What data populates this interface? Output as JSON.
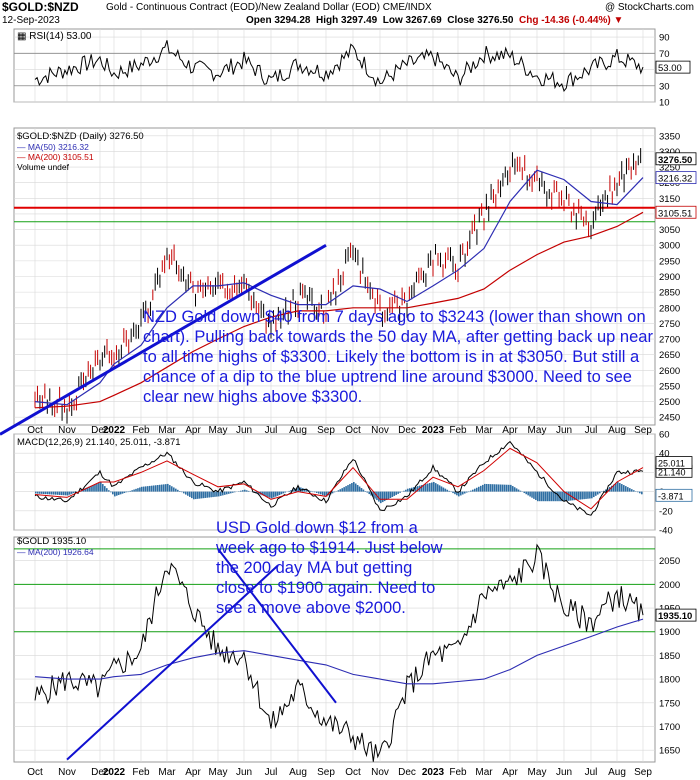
{
  "header": {
    "symbol": "$GOLD:$NZD",
    "description": "Gold - Continuous Contract (EOD)/New Zealand Dollar (EOD)",
    "exchange": "CME/INDX",
    "date": "12-Sep-2023",
    "open": "Open 3294.28",
    "high": "High 3297.49",
    "low": "Low 3267.69",
    "close": "Close 3276.50",
    "chg": "Chg -14.36 (-0.44%)",
    "source": "@ StockCharts.com"
  },
  "annotations": {
    "nzd_note": "NZD Gold down $40 from 7 days ago to $3243 (lower than shown on chart). Pulling back towards the 50 day MA, after getting back up near to all time highs of $3300. Likely the bottom is in at $3050. But still a chance of a dip to the blue uptrend line around $3000. Need to see clear new highs above $3300.",
    "usd_note": "USD Gold down $12 from a week ago to $1914. Just below the 200 day MA but getting close to $1900 again. Need to see a move above $2000."
  },
  "chart_data": [
    {
      "type": "line",
      "title": "RSI(14) 53.00",
      "ylim": [
        10,
        100
      ],
      "ticks": [
        "90",
        "70",
        "50",
        "30",
        "10"
      ],
      "levels": [
        70,
        30
      ],
      "last_value": "53.00",
      "x": [
        "Oct",
        "Nov",
        "Dec",
        "2022",
        "Feb",
        "Mar",
        "Apr",
        "May",
        "Jun",
        "Jul",
        "Aug",
        "Sep",
        "Oct",
        "Nov",
        "Dec",
        "2023",
        "Feb",
        "Mar",
        "Apr",
        "May",
        "Jun",
        "Jul",
        "Aug",
        "Sep"
      ],
      "values": [
        38,
        50,
        62,
        45,
        56,
        76,
        52,
        46,
        61,
        36,
        57,
        46,
        74,
        34,
        56,
        66,
        38,
        69,
        67,
        42,
        34,
        51,
        65,
        53
      ]
    },
    {
      "type": "line",
      "title": "$GOLD:$NZD (Daily) 3276.50",
      "legend": [
        "$GOLD:$NZD (Daily) 3276.50",
        "MA(50) 3216.32",
        "MA(200) 3105.51",
        "Volume undef"
      ],
      "ylim": [
        2425,
        3375
      ],
      "ticks": [
        3350,
        3300,
        3250,
        3200,
        3150,
        3100,
        3050,
        3000,
        2950,
        2900,
        2850,
        2800,
        2750,
        2700,
        2650,
        2600,
        2550,
        2500,
        2450
      ],
      "x": [
        "Oct",
        "Nov",
        "Dec",
        "2022",
        "Feb",
        "Mar",
        "Apr",
        "May",
        "Jun",
        "Jul",
        "Aug",
        "Sep",
        "Oct",
        "Nov",
        "Dec",
        "2023",
        "Feb",
        "Mar",
        "Apr",
        "May",
        "Jun",
        "Jul",
        "Aug",
        "Sep"
      ],
      "series": [
        {
          "name": "$GOLD:$NZD",
          "values": [
            2520,
            2480,
            2630,
            2660,
            2740,
            2980,
            2850,
            2860,
            2880,
            2740,
            2830,
            2800,
            2980,
            2790,
            2820,
            2960,
            2930,
            3100,
            3240,
            3210,
            3140,
            3070,
            3200,
            3276.5
          ]
        },
        {
          "name": "MA(50)",
          "values": [
            2500,
            2490,
            2560,
            2620,
            2680,
            2800,
            2870,
            2870,
            2880,
            2840,
            2810,
            2810,
            2870,
            2860,
            2820,
            2870,
            2920,
            2990,
            3140,
            3240,
            3210,
            3140,
            3130,
            3216.32
          ]
        },
        {
          "name": "MA(200)",
          "values": [
            2480,
            2485,
            2500,
            2520,
            2560,
            2610,
            2660,
            2700,
            2740,
            2770,
            2790,
            2790,
            2800,
            2800,
            2800,
            2815,
            2830,
            2860,
            2920,
            2970,
            3010,
            3030,
            3060,
            3105.51
          ]
        }
      ],
      "price_labels": [
        "3276.50",
        "3216.32",
        "3105.51"
      ],
      "horizontal_lines": [
        3120,
        3075
      ],
      "trendline": {
        "from": [
          "Oct",
          2450
        ],
        "to": [
          "Sep",
          3000
        ]
      }
    },
    {
      "type": "line",
      "title": "MACD(12,26,9) 21.140, 25.011, -3.871",
      "ylim": [
        -40,
        60
      ],
      "ticks": [
        "60",
        "40",
        "20",
        "0",
        "-20",
        "-40"
      ],
      "x": [
        "Oct",
        "Nov",
        "Dec",
        "2022",
        "Feb",
        "Mar",
        "Apr",
        "May",
        "Jun",
        "Jul",
        "Aug",
        "Sep",
        "Oct",
        "Nov",
        "Dec",
        "2023",
        "Feb",
        "Mar",
        "Apr",
        "May",
        "Jun",
        "Jul",
        "Aug",
        "Sep"
      ],
      "series": [
        {
          "name": "MACD",
          "values": [
            -5,
            -10,
            20,
            5,
            25,
            40,
            10,
            0,
            10,
            -15,
            5,
            -10,
            35,
            -20,
            -5,
            25,
            0,
            30,
            52,
            20,
            -10,
            -25,
            20,
            21.14
          ]
        },
        {
          "name": "Signal",
          "values": [
            -3,
            -6,
            10,
            10,
            20,
            32,
            18,
            5,
            8,
            -8,
            0,
            -5,
            25,
            -8,
            -8,
            15,
            5,
            22,
            45,
            30,
            0,
            -18,
            10,
            25.011
          ]
        },
        {
          "name": "Histogram",
          "values": [
            -2,
            -4,
            10,
            -5,
            5,
            8,
            -8,
            -5,
            2,
            -7,
            5,
            -5,
            10,
            -12,
            3,
            10,
            -5,
            8,
            7,
            -10,
            -10,
            -7,
            10,
            -3.871
          ]
        }
      ],
      "price_labels": [
        "21.140",
        "25.011",
        "-3.871"
      ]
    },
    {
      "type": "line",
      "title": "$GOLD 1935.10",
      "legend": [
        "$GOLD 1935.10",
        "MA(200) 1926.64"
      ],
      "ylim": [
        1625,
        2100
      ],
      "ticks": [
        2050,
        2000,
        1950,
        1900,
        1850,
        1800,
        1750,
        1700,
        1650
      ],
      "x": [
        "Oct",
        "Nov",
        "Dec",
        "2022",
        "Feb",
        "Mar",
        "Apr",
        "May",
        "Jun",
        "Jul",
        "Aug",
        "Sep",
        "Oct",
        "Nov",
        "Dec",
        "2023",
        "Feb",
        "Mar",
        "Apr",
        "May",
        "Jun",
        "Jul",
        "Aug",
        "Sep"
      ],
      "series": [
        {
          "name": "$GOLD",
          "values": [
            1760,
            1800,
            1780,
            1820,
            1860,
            2050,
            1950,
            1860,
            1850,
            1700,
            1780,
            1710,
            1680,
            1630,
            1780,
            1850,
            1860,
            1980,
            2000,
            2060,
            1950,
            1920,
            1980,
            1935.1
          ]
        },
        {
          "name": "MA(200)",
          "values": [
            1805,
            1800,
            1800,
            1805,
            1810,
            1830,
            1845,
            1855,
            1860,
            1850,
            1840,
            1830,
            1810,
            1800,
            1790,
            1790,
            1795,
            1800,
            1820,
            1850,
            1870,
            1890,
            1910,
            1926.64
          ]
        }
      ],
      "price_labels": [
        "1935.10"
      ],
      "horizontal_lines": [
        2075,
        2000,
        1900
      ],
      "channel": {
        "upper": [
          [
            "Sep",
            1750
          ],
          [
            "May",
            2075
          ]
        ],
        "lower": [
          [
            "Nov",
            1630
          ],
          [
            "Aug",
            2040
          ]
        ]
      }
    }
  ],
  "colors": {
    "price": "#000000",
    "up_bar": "#000000",
    "down_bar": "#c40000",
    "ma50": "#2d2db3",
    "ma200": "#c40000",
    "trend": "#1010d0",
    "support": "#e00000",
    "gridline": "#d8d8d8",
    "hline_green": "#15a015",
    "macd": "#000000",
    "signal": "#d00000",
    "histogram": "#2f6fa3",
    "annotation": "#1a1adc"
  }
}
